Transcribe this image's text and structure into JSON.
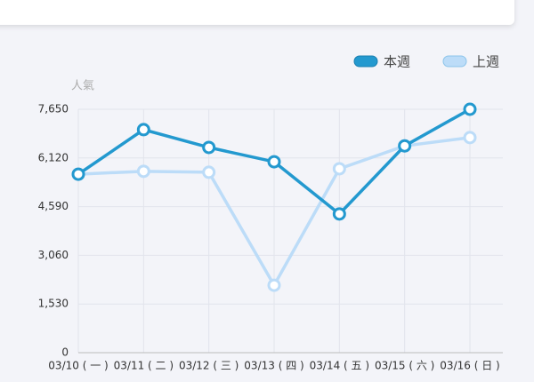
{
  "chart_data": {
    "type": "line",
    "y_axis_title": "人氣",
    "categories": [
      "03/10 ( 一 )",
      "03/11 ( 二 )",
      "03/12 ( 三 )",
      "03/13 ( 四 )",
      "03/14 ( 五 )",
      "03/15 ( 六 )",
      "03/16 ( 日 )"
    ],
    "series": [
      {
        "name": "本週",
        "color": "#2399cf",
        "values": [
          5610,
          7010,
          6450,
          6000,
          4360,
          6500,
          7650
        ]
      },
      {
        "name": "上週",
        "color": "#bcdcf8",
        "values": [
          5610,
          5700,
          5670,
          2120,
          5780,
          6500,
          6760
        ]
      }
    ],
    "ylim": [
      0,
      7650
    ],
    "yticks": [
      0,
      {
        "value": 1530,
        "label": "1,530"
      },
      {
        "value": 3060,
        "label": "3,060"
      },
      {
        "value": 4590,
        "label": "4,590"
      },
      {
        "value": 6120,
        "label": "6,120"
      },
      {
        "value": 7650,
        "label": "7,650"
      }
    ],
    "grid": true
  }
}
